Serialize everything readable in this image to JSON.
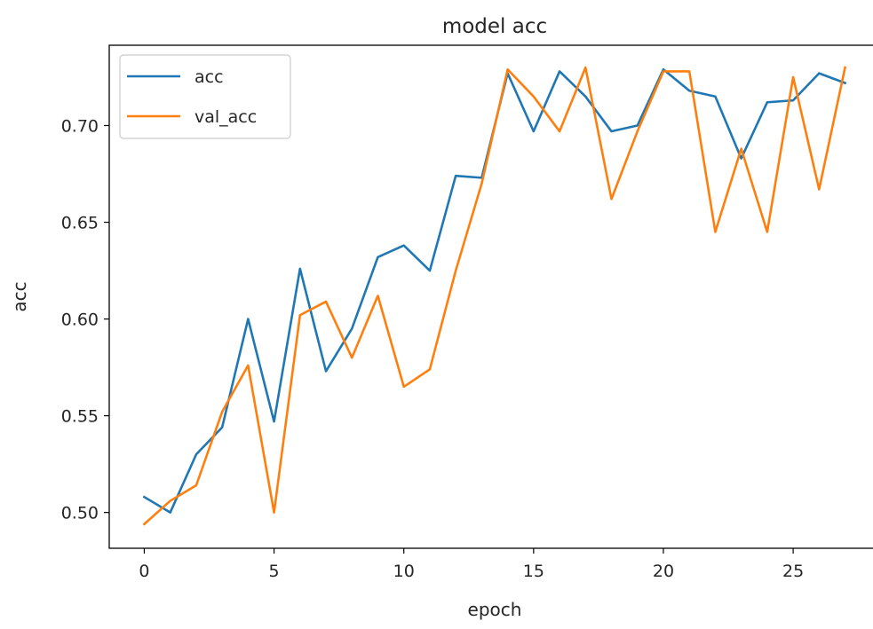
{
  "chart_data": {
    "type": "line",
    "title": "model acc",
    "xlabel": "epoch",
    "ylabel": "acc",
    "xlim": [
      -1.35,
      28.35
    ],
    "ylim": [
      0.4815,
      0.7415
    ],
    "xticks": [
      0,
      5,
      10,
      15,
      20,
      25
    ],
    "yticks": [
      0.5,
      0.55,
      0.6,
      0.65,
      0.7
    ],
    "ytick_labels": [
      "0.50",
      "0.55",
      "0.60",
      "0.65",
      "0.70"
    ],
    "grid": false,
    "legend_position": "top-left",
    "x": [
      0,
      1,
      2,
      3,
      4,
      5,
      6,
      7,
      8,
      9,
      10,
      11,
      12,
      13,
      14,
      15,
      16,
      17,
      18,
      19,
      20,
      21,
      22,
      23,
      24,
      25,
      26,
      27
    ],
    "series": [
      {
        "name": "acc",
        "color": "#1f77b4",
        "values": [
          0.508,
          0.5,
          0.53,
          0.544,
          0.6,
          0.547,
          0.626,
          0.573,
          0.595,
          0.632,
          0.638,
          0.625,
          0.674,
          0.673,
          0.727,
          0.697,
          0.728,
          0.715,
          0.697,
          0.7,
          0.729,
          0.718,
          0.715,
          0.683,
          0.712,
          0.713,
          0.727,
          0.722
        ]
      },
      {
        "name": "val_acc",
        "color": "#ff7f0e",
        "values": [
          0.494,
          0.506,
          0.514,
          0.552,
          0.576,
          0.5,
          0.602,
          0.609,
          0.58,
          0.612,
          0.565,
          0.574,
          0.625,
          0.67,
          0.729,
          0.715,
          0.697,
          0.73,
          0.662,
          0.697,
          0.728,
          0.728,
          0.645,
          0.688,
          0.645,
          0.725,
          0.667,
          0.73
        ]
      }
    ]
  }
}
